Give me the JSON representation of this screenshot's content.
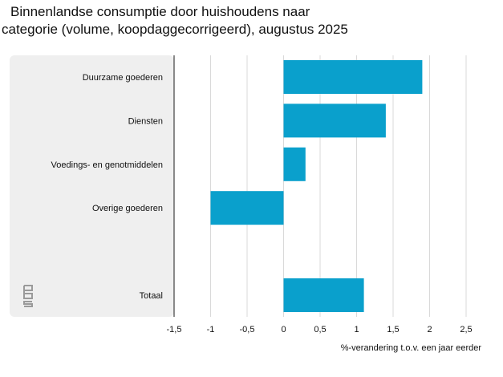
{
  "title": {
    "line1": "Binnenlandse consumptie door huishoudens naar",
    "line2": "categorie (volume, koopdaggecorrigeerd), augustus 2025"
  },
  "logo": {
    "text": "cbs"
  },
  "colors": {
    "bar": "#0aa0cc",
    "label_panel": "#efefef",
    "grid": "#d9d9d9",
    "axis": "#1a1a1a"
  },
  "chart_data": {
    "type": "bar",
    "orientation": "horizontal",
    "title": "Binnenlandse consumptie door huishoudens naar categorie (volume, koopdaggecorrigeerd), augustus 2025",
    "categories": [
      "Duurzame goederen",
      "Diensten",
      "Voedings- en genotmiddelen",
      "Overige goederen",
      "",
      "Totaal"
    ],
    "values": [
      1.9,
      1.4,
      0.3,
      -1.0,
      null,
      1.1
    ],
    "xlabel": "%-verandering t.o.v. een jaar eerder",
    "ylabel": "",
    "xlim": [
      -1.5,
      2.5
    ],
    "ticks": [
      -1.5,
      -1,
      -0.5,
      0,
      0.5,
      1,
      1.5,
      2,
      2.5
    ],
    "tick_labels": [
      "-1,5",
      "-1",
      "-0,5",
      "0",
      "0,5",
      "1",
      "1,5",
      "2",
      "2,5"
    ],
    "grid": true
  }
}
